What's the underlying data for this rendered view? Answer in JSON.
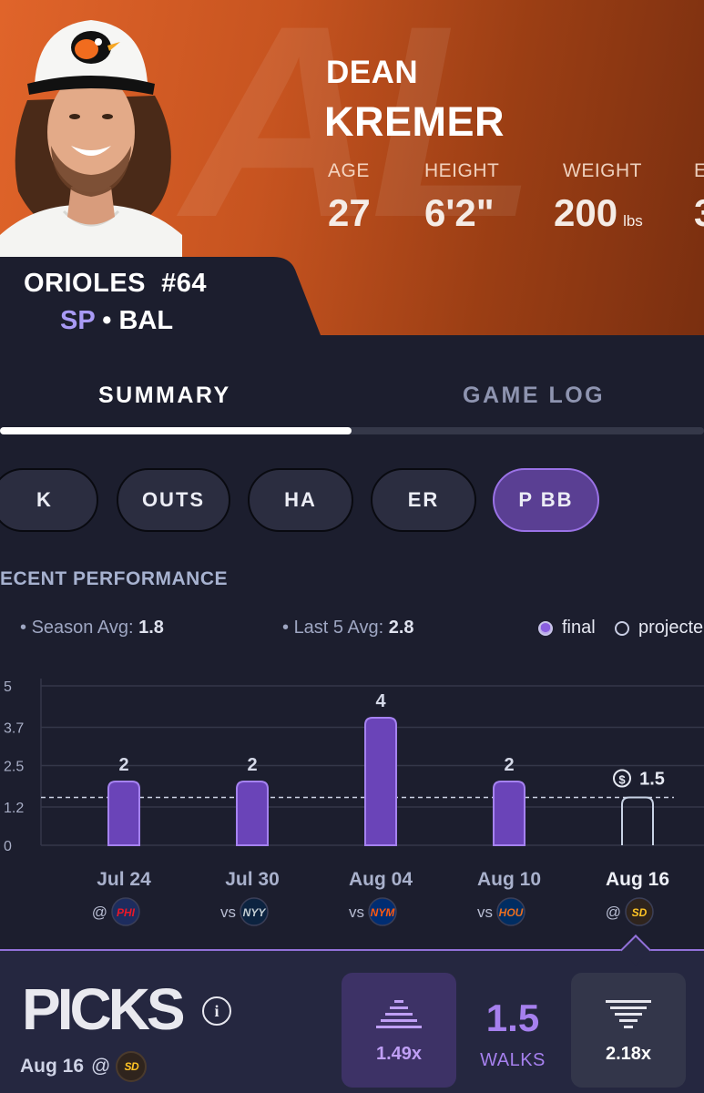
{
  "player": {
    "first_name": "DEAN",
    "last_name": "KREMER",
    "stats": [
      {
        "label": "AGE",
        "value": "27",
        "unit": ""
      },
      {
        "label": "HEIGHT",
        "value": "6'2\"",
        "unit": ""
      },
      {
        "label": "WEIGHT",
        "value": "200",
        "unit": "lbs"
      },
      {
        "label": "E",
        "value": "3",
        "unit": ""
      }
    ],
    "team_line": "ORIOLES  #64",
    "position": "SP",
    "team_abbr": "BAL",
    "cap_logo": "orioles-bird-logo"
  },
  "tabs": [
    {
      "label": "SUMMARY",
      "active": true
    },
    {
      "label": "GAME LOG",
      "active": false
    }
  ],
  "stat_chips": [
    {
      "label": "K",
      "active": false
    },
    {
      "label": "OUTS",
      "active": false
    },
    {
      "label": "HA",
      "active": false
    },
    {
      "label": "ER",
      "active": false
    },
    {
      "label": "P BB",
      "active": true
    }
  ],
  "performance": {
    "title": "ECENT PERFORMANCE",
    "season_avg_label": "Season Avg:",
    "season_avg": "1.8",
    "last5_avg_label": "Last 5 Avg:",
    "last5_avg": "2.8",
    "legend_final": "final",
    "legend_projected": "projecte"
  },
  "chart_data": {
    "type": "bar",
    "y_ticks": [
      "5",
      "3.7",
      "2.5",
      "1.2",
      "0"
    ],
    "ylim": [
      0,
      5
    ],
    "line_value": 1.5,
    "line_label": "1.5",
    "games": [
      {
        "date": "Jul 24",
        "loc": "@",
        "opp": "PHI",
        "value": 2,
        "label": "2",
        "status": "final",
        "opp_color": "#e81828",
        "opp_bg": "#1d2c5e"
      },
      {
        "date": "Jul 30",
        "loc": "vs",
        "opp": "NYY",
        "value": 2,
        "label": "2",
        "status": "final",
        "opp_color": "#c4ced3",
        "opp_bg": "#0c2340"
      },
      {
        "date": "Aug 04",
        "loc": "vs",
        "opp": "NYM",
        "value": 4,
        "label": "4",
        "status": "final",
        "opp_color": "#ff5910",
        "opp_bg": "#002d72"
      },
      {
        "date": "Aug 10",
        "loc": "vs",
        "opp": "HOU",
        "value": 2,
        "label": "2",
        "status": "final",
        "opp_color": "#eb6e1f",
        "opp_bg": "#002d62"
      },
      {
        "date": "Aug 16",
        "loc": "@",
        "opp": "SD",
        "value": 1.5,
        "label": "1.5",
        "status": "projected",
        "opp_color": "#ffc425",
        "opp_bg": "#2f241d"
      }
    ],
    "colors": {
      "final_fill": "#6a44b8",
      "final_stroke": "#a582f0",
      "projected_stroke": "#c8d2e4",
      "grid": "#343749",
      "line": "#cdd2e3"
    }
  },
  "picks": {
    "logo_text": "PICKS",
    "date": "Aug 16",
    "loc": "@",
    "opp": "SD",
    "more_multiplier": "1.49x",
    "less_multiplier": "2.18x",
    "line_value": "1.5",
    "line_stat": "WALKS"
  }
}
